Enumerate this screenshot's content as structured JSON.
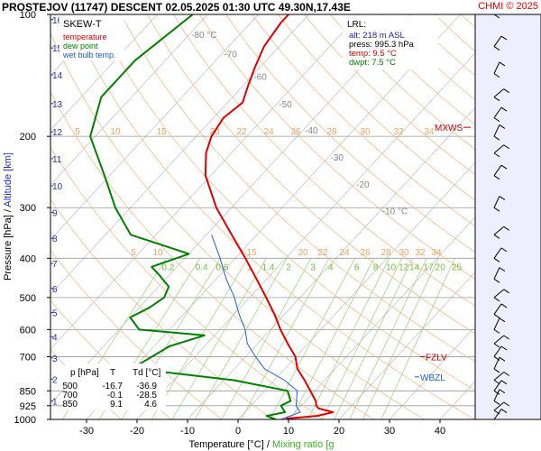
{
  "header": {
    "title": "PROSTEJOV (11747)   DESCENT   02.05.2025 01:30 UTC  49.30N,17.43E",
    "credit": "CHMI © 2025"
  },
  "legend": {
    "title": "SKEW-T",
    "items": [
      {
        "label": "temperature",
        "color": "#e00000"
      },
      {
        "label": "dew point",
        "color": "#008000"
      },
      {
        "label": "wet bulb temp.",
        "color": "#2060d0"
      }
    ]
  },
  "lrl": {
    "title": "LRL:",
    "lines": [
      {
        "text": "alt: 218 m ASL",
        "color": "#2020c0"
      },
      {
        "text": "press: 995.3 hPa",
        "color": "#000000"
      },
      {
        "text": "temp: 9.5 °C",
        "color": "#e00000"
      },
      {
        "text": "dwpt: 7.5 °C",
        "color": "#008000"
      }
    ]
  },
  "levels_table": {
    "headers": [
      "p [hPa]",
      "T",
      "Td [°C]"
    ],
    "rows": [
      [
        "500",
        "-16.7",
        "-36.9"
      ],
      [
        "700",
        "-0.1",
        "-28.5"
      ],
      [
        "850",
        "9.1",
        "4.6"
      ]
    ]
  },
  "markers": [
    {
      "label": "MXWS",
      "color": "#c00000",
      "p": 190
    },
    {
      "label": "FZLV",
      "color": "#c00000",
      "p": 700
    },
    {
      "label": "WBZL",
      "color": "#2060d0",
      "p": 785
    }
  ],
  "chart_data": {
    "type": "line",
    "title": "",
    "xlabel": "Temperature [°C]  /  Mixing ratio [g/kg]",
    "ylabel": "Pressure [hPa]  /  Altitude [km]",
    "xlim": [
      -35,
      45
    ],
    "ylim": [
      1000,
      100
    ],
    "x_ticks": [
      -30,
      -20,
      -10,
      0,
      10,
      20,
      30,
      40
    ],
    "pressure_ticks": [
      100,
      200,
      300,
      400,
      500,
      600,
      700,
      850,
      925,
      1000
    ],
    "altitude_ticks": [
      {
        "km": 1,
        "p": 900
      },
      {
        "km": 2,
        "p": 795
      },
      {
        "km": 3,
        "p": 705
      },
      {
        "km": 4,
        "p": 625
      },
      {
        "km": 5,
        "p": 545
      },
      {
        "km": 6,
        "p": 475
      },
      {
        "km": 7,
        "p": 412
      },
      {
        "km": 8,
        "p": 357
      },
      {
        "km": 9,
        "p": 308
      },
      {
        "km": 10,
        "p": 265
      },
      {
        "km": 11,
        "p": 227
      },
      {
        "km": 12,
        "p": 195
      },
      {
        "km": 13,
        "p": 166
      },
      {
        "km": 14,
        "p": 141
      },
      {
        "km": 15,
        "p": 121
      },
      {
        "km": 16,
        "p": 103
      }
    ],
    "isotherm_labels": [
      -80,
      -70,
      -60,
      -50,
      -40,
      -30,
      -20,
      -10
    ],
    "isotherm_label_unit": "°C",
    "mixing_ratio_labels": [
      "0.2",
      "0.4",
      "0.6",
      "1",
      "1.4",
      "2",
      "3",
      "4",
      "6",
      "8",
      "10",
      "12",
      "14",
      "17",
      "20",
      "25"
    ],
    "theta_e_labels_upper": [
      "5",
      "10",
      "15",
      "20",
      "22",
      "24",
      "26",
      "28",
      "30",
      "32",
      "34"
    ],
    "theta_e_labels_lower": [
      "5",
      "10",
      "15",
      "20",
      "22",
      "24",
      "26",
      "28",
      "30",
      "32",
      "34"
    ],
    "grid": true,
    "series": [
      {
        "name": "temperature",
        "color": "#e00000",
        "points": [
          {
            "p": 1000,
            "t": 10
          },
          {
            "p": 995,
            "t": 9.5
          },
          {
            "p": 980,
            "t": 15
          },
          {
            "p": 960,
            "t": 17.5
          },
          {
            "p": 940,
            "t": 14
          },
          {
            "p": 925,
            "t": 13
          },
          {
            "p": 900,
            "t": 12
          },
          {
            "p": 850,
            "t": 9.1
          },
          {
            "p": 800,
            "t": 6
          },
          {
            "p": 750,
            "t": 2.5
          },
          {
            "p": 700,
            "t": -0.1
          },
          {
            "p": 650,
            "t": -4
          },
          {
            "p": 600,
            "t": -8
          },
          {
            "p": 550,
            "t": -12
          },
          {
            "p": 500,
            "t": -16.7
          },
          {
            "p": 450,
            "t": -22
          },
          {
            "p": 400,
            "t": -28
          },
          {
            "p": 350,
            "t": -35
          },
          {
            "p": 300,
            "t": -43
          },
          {
            "p": 250,
            "t": -51
          },
          {
            "p": 220,
            "t": -55
          },
          {
            "p": 200,
            "t": -57
          },
          {
            "p": 180,
            "t": -58
          },
          {
            "p": 165,
            "t": -57
          },
          {
            "p": 150,
            "t": -59
          },
          {
            "p": 135,
            "t": -61
          },
          {
            "p": 120,
            "t": -63
          },
          {
            "p": 105,
            "t": -64
          },
          {
            "p": 100,
            "t": -64
          }
        ]
      },
      {
        "name": "dew point",
        "color": "#008000",
        "points": [
          {
            "p": 1000,
            "t": 7.5
          },
          {
            "p": 980,
            "t": 5
          },
          {
            "p": 960,
            "t": 8
          },
          {
            "p": 925,
            "t": 6
          },
          {
            "p": 900,
            "t": 7
          },
          {
            "p": 850,
            "t": 4.6
          },
          {
            "p": 800,
            "t": -8
          },
          {
            "p": 760,
            "t": -25
          },
          {
            "p": 740,
            "t": -30
          },
          {
            "p": 700,
            "t": -28.5
          },
          {
            "p": 660,
            "t": -27
          },
          {
            "p": 620,
            "t": -22
          },
          {
            "p": 600,
            "t": -36
          },
          {
            "p": 560,
            "t": -40
          },
          {
            "p": 530,
            "t": -38
          },
          {
            "p": 500,
            "t": -36.9
          },
          {
            "p": 470,
            "t": -38
          },
          {
            "p": 440,
            "t": -42
          },
          {
            "p": 420,
            "t": -45
          },
          {
            "p": 390,
            "t": -40
          },
          {
            "p": 350,
            "t": -55
          },
          {
            "p": 300,
            "t": -63
          },
          {
            "p": 250,
            "t": -71
          },
          {
            "p": 200,
            "t": -81
          },
          {
            "p": 160,
            "t": -86
          },
          {
            "p": 130,
            "t": -86
          },
          {
            "p": 100,
            "t": -83
          }
        ]
      },
      {
        "name": "wet bulb temp.",
        "color": "#2060d0",
        "points": [
          {
            "p": 1000,
            "t": 8.5
          },
          {
            "p": 960,
            "t": 11
          },
          {
            "p": 925,
            "t": 9
          },
          {
            "p": 850,
            "t": 6.5
          },
          {
            "p": 800,
            "t": 2
          },
          {
            "p": 750,
            "t": -4
          },
          {
            "p": 700,
            "t": -8
          },
          {
            "p": 650,
            "t": -12
          },
          {
            "p": 600,
            "t": -15
          },
          {
            "p": 550,
            "t": -19
          },
          {
            "p": 500,
            "t": -23
          },
          {
            "p": 450,
            "t": -28
          },
          {
            "p": 400,
            "t": -33
          },
          {
            "p": 350,
            "t": -39
          }
        ]
      }
    ],
    "wind_barbs_p": [
      1000,
      950,
      900,
      850,
      800,
      750,
      700,
      650,
      600,
      550,
      500,
      450,
      400,
      350,
      300,
      250,
      220,
      200,
      180,
      160,
      140,
      120,
      100
    ]
  }
}
